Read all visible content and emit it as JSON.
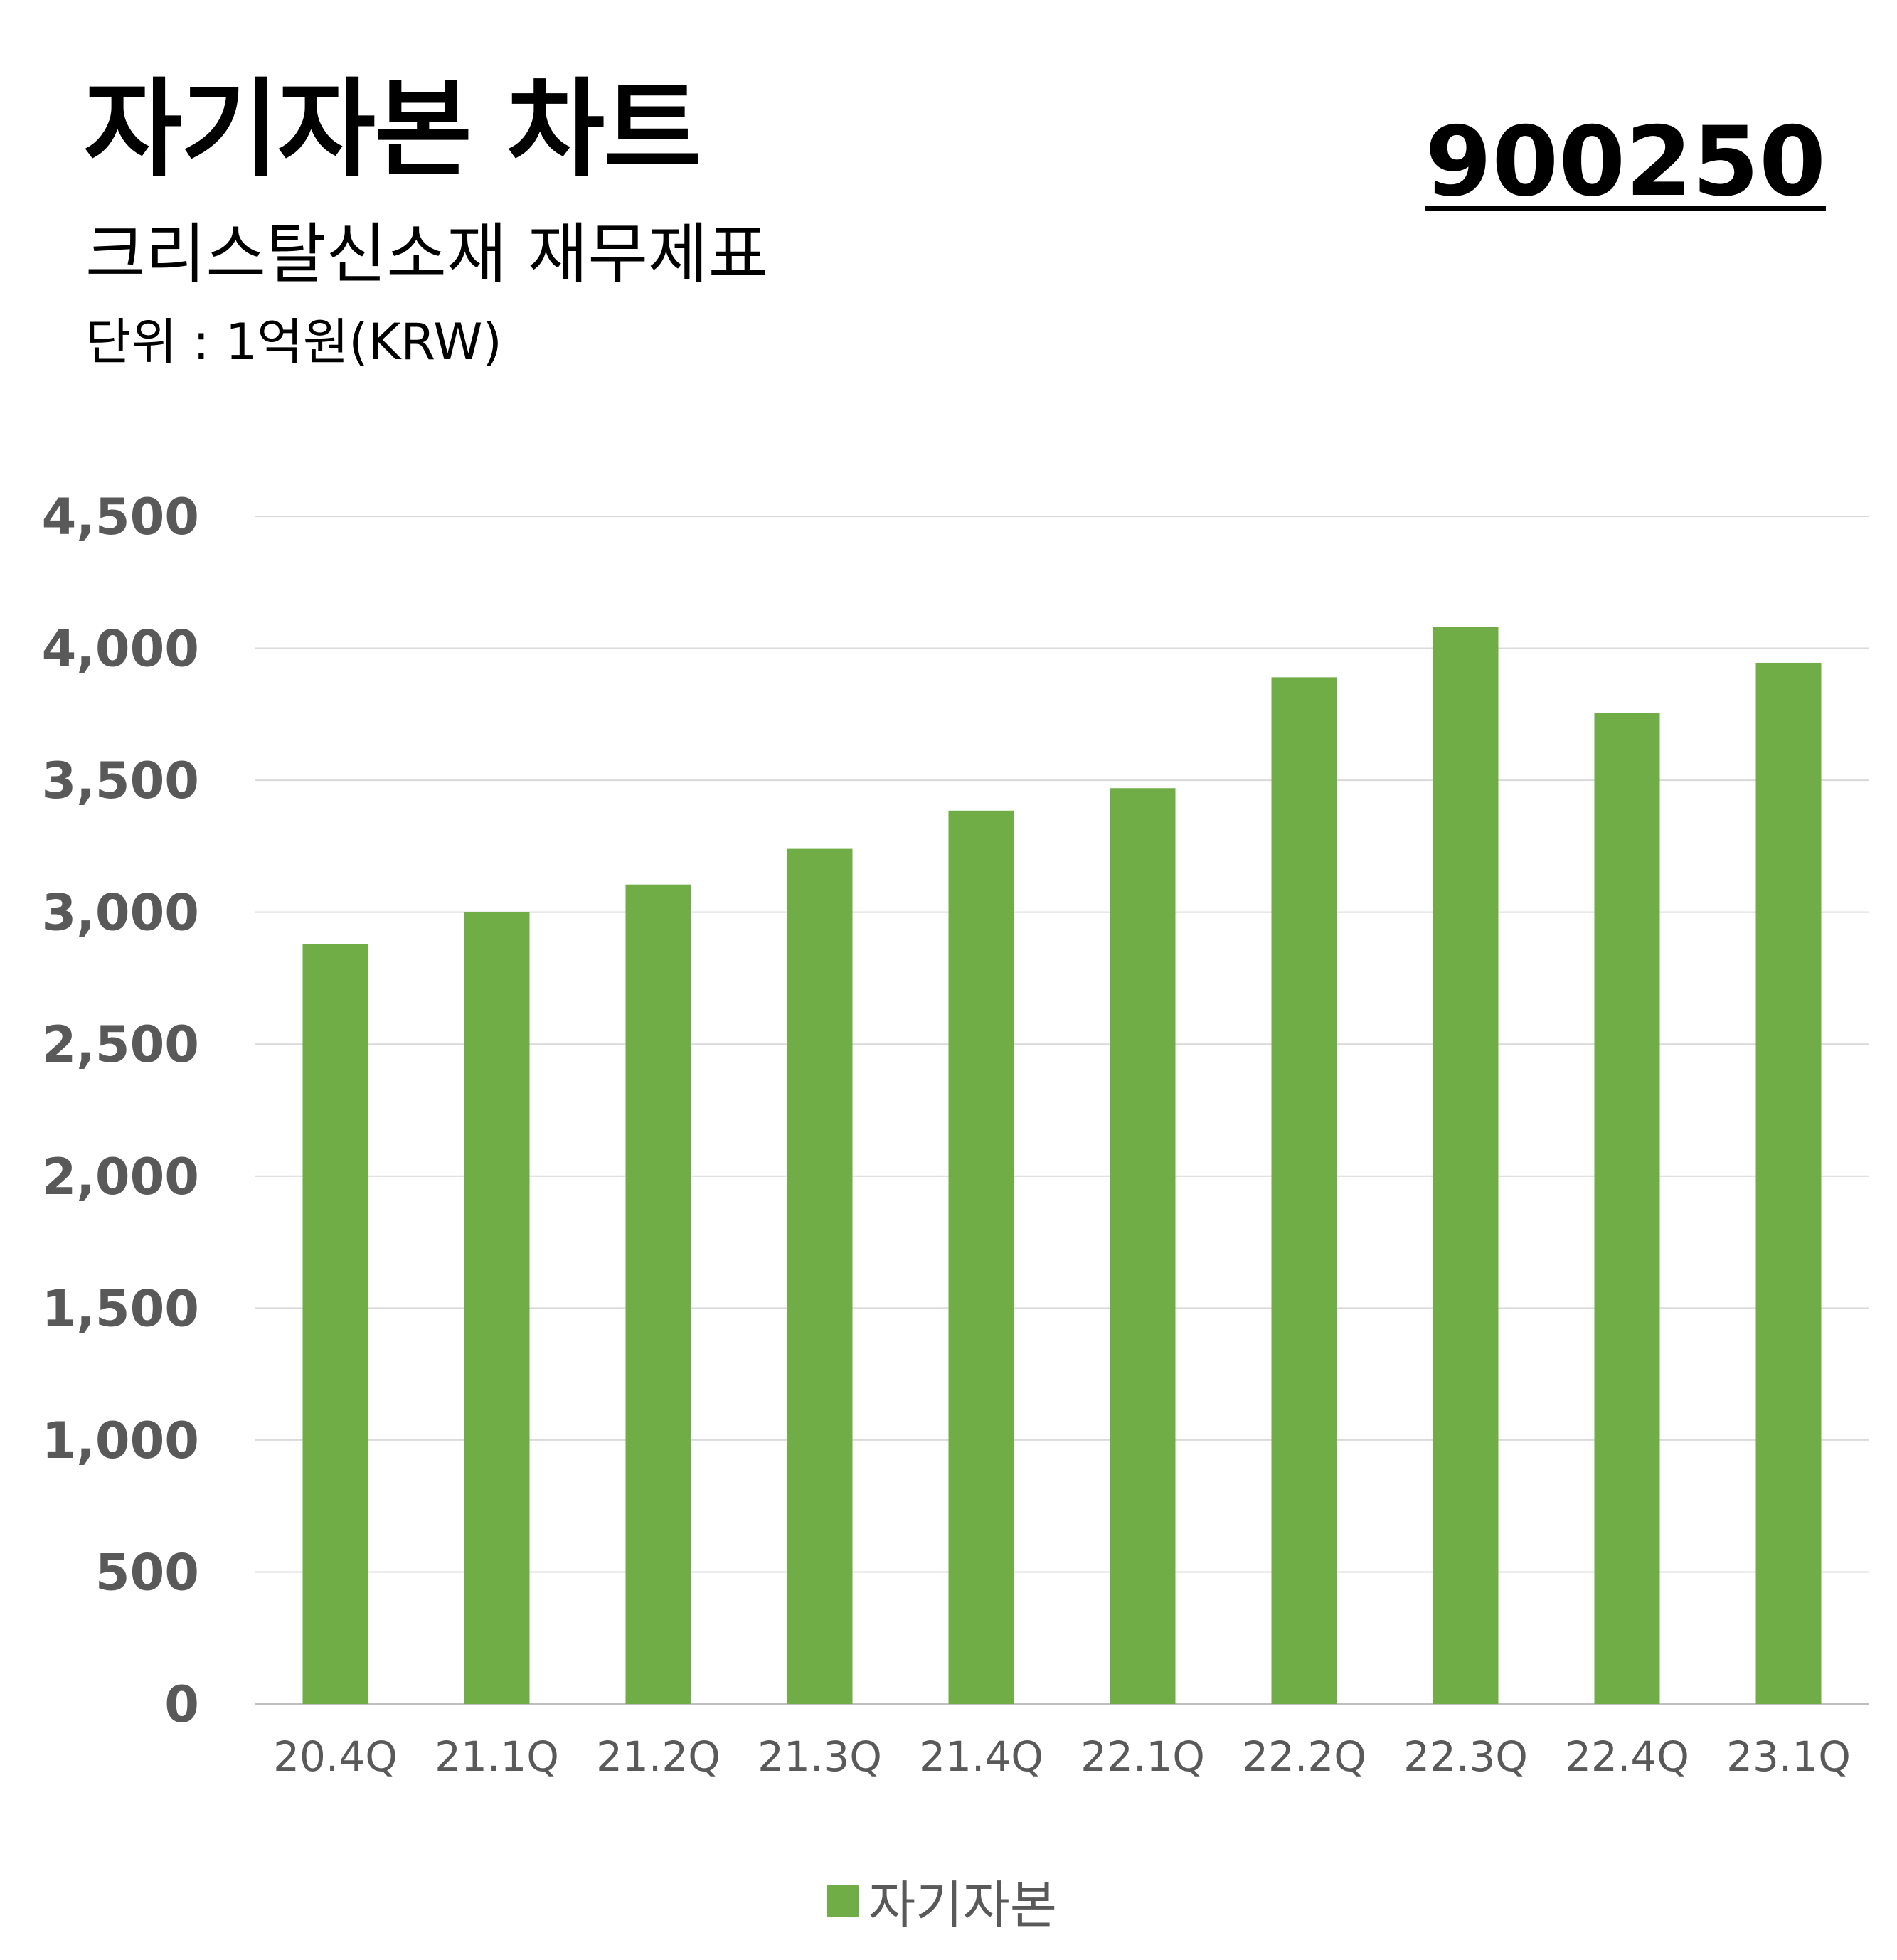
{
  "header": {
    "title": "자기자본 차트",
    "subtitle": "크리스탈신소재 재무제표",
    "unit": "단위 : 1억원(KRW)",
    "code": "900250"
  },
  "colors": {
    "bar": "#70AD47",
    "grid": "#D9D9D9",
    "tick_text": "#595959"
  },
  "chart_data": {
    "type": "bar",
    "categories": [
      "20.4Q",
      "21.1Q",
      "21.2Q",
      "21.3Q",
      "21.4Q",
      "22.1Q",
      "22.2Q",
      "22.3Q",
      "22.4Q",
      "23.1Q"
    ],
    "series": [
      {
        "name": "자기자본",
        "values": [
          2880,
          3000,
          3105,
          3240,
          3385,
          3470,
          3890,
          4080,
          3755,
          3945
        ]
      }
    ],
    "ylim": [
      0,
      4500
    ],
    "yticks": [
      0,
      500,
      1000,
      1500,
      2000,
      2500,
      3000,
      3500,
      4000,
      4500
    ],
    "ytick_labels": [
      "0",
      "500",
      "1,000",
      "1,500",
      "2,000",
      "2,500",
      "3,000",
      "3,500",
      "4,000",
      "4,500"
    ],
    "grid": true,
    "legend_position": "bottom"
  }
}
